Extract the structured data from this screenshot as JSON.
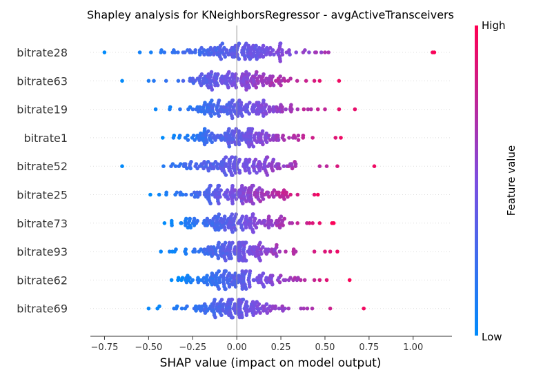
{
  "chart_data": {
    "type": "scatter",
    "subtype": "shap-beeswarm",
    "title": "Shapley analysis for KNeighborsRegressor - avgActiveTransceivers",
    "xlabel": "SHAP value (impact on model output)",
    "xlim": [
      -0.83,
      1.22
    ],
    "xticks": [
      -0.75,
      -0.5,
      -0.25,
      0.0,
      0.25,
      0.5,
      0.75,
      1.0
    ],
    "xtick_labels": [
      "−0.75",
      "−0.50",
      "−0.25",
      "0.00",
      "0.25",
      "0.50",
      "0.75",
      "1.00"
    ],
    "colorbar": {
      "label": "Feature value",
      "high_label": "High",
      "low_label": "Low",
      "low_color": "#008bfb",
      "mid_color": "#7c4ee0",
      "high_color": "#ff0052"
    },
    "grid": false,
    "features": [
      {
        "name": "bitrate28",
        "min": -0.75,
        "max": 1.12,
        "extra": [
          -0.75,
          -0.55,
          -0.43,
          1.11,
          1.12,
          0.52,
          0.5,
          0.45
        ]
      },
      {
        "name": "bitrate63",
        "min": -0.65,
        "max": 0.58,
        "extra": [
          -0.65,
          -0.5,
          -0.47,
          0.58,
          0.47,
          0.44
        ]
      },
      {
        "name": "bitrate19",
        "min": -0.46,
        "max": 0.67,
        "extra": [
          -0.46,
          0.67,
          0.58,
          0.5,
          0.46
        ]
      },
      {
        "name": "bitrate1",
        "min": -0.42,
        "max": 0.59,
        "extra": [
          -0.42,
          0.59,
          0.56,
          0.43
        ]
      },
      {
        "name": "bitrate52",
        "min": -0.65,
        "max": 0.78,
        "extra": [
          -0.65,
          0.78,
          0.57,
          0.51,
          0.47
        ]
      },
      {
        "name": "bitrate25",
        "min": -0.49,
        "max": 0.46,
        "extra": [
          -0.49,
          -0.44,
          -0.4,
          0.46,
          0.44
        ]
      },
      {
        "name": "bitrate73",
        "min": -0.41,
        "max": 0.55,
        "extra": [
          -0.41,
          0.55,
          0.54,
          0.47,
          0.43
        ]
      },
      {
        "name": "bitrate93",
        "min": -0.43,
        "max": 0.57,
        "extra": [
          -0.43,
          0.57,
          0.53,
          0.5,
          0.44
        ]
      },
      {
        "name": "bitrate62",
        "min": -0.37,
        "max": 0.64,
        "extra": [
          -0.37,
          0.64,
          0.51,
          0.47,
          0.44
        ]
      },
      {
        "name": "bitrate69",
        "min": -0.5,
        "max": 0.72,
        "extra": [
          -0.5,
          0.72,
          0.53,
          0.4
        ]
      }
    ]
  }
}
